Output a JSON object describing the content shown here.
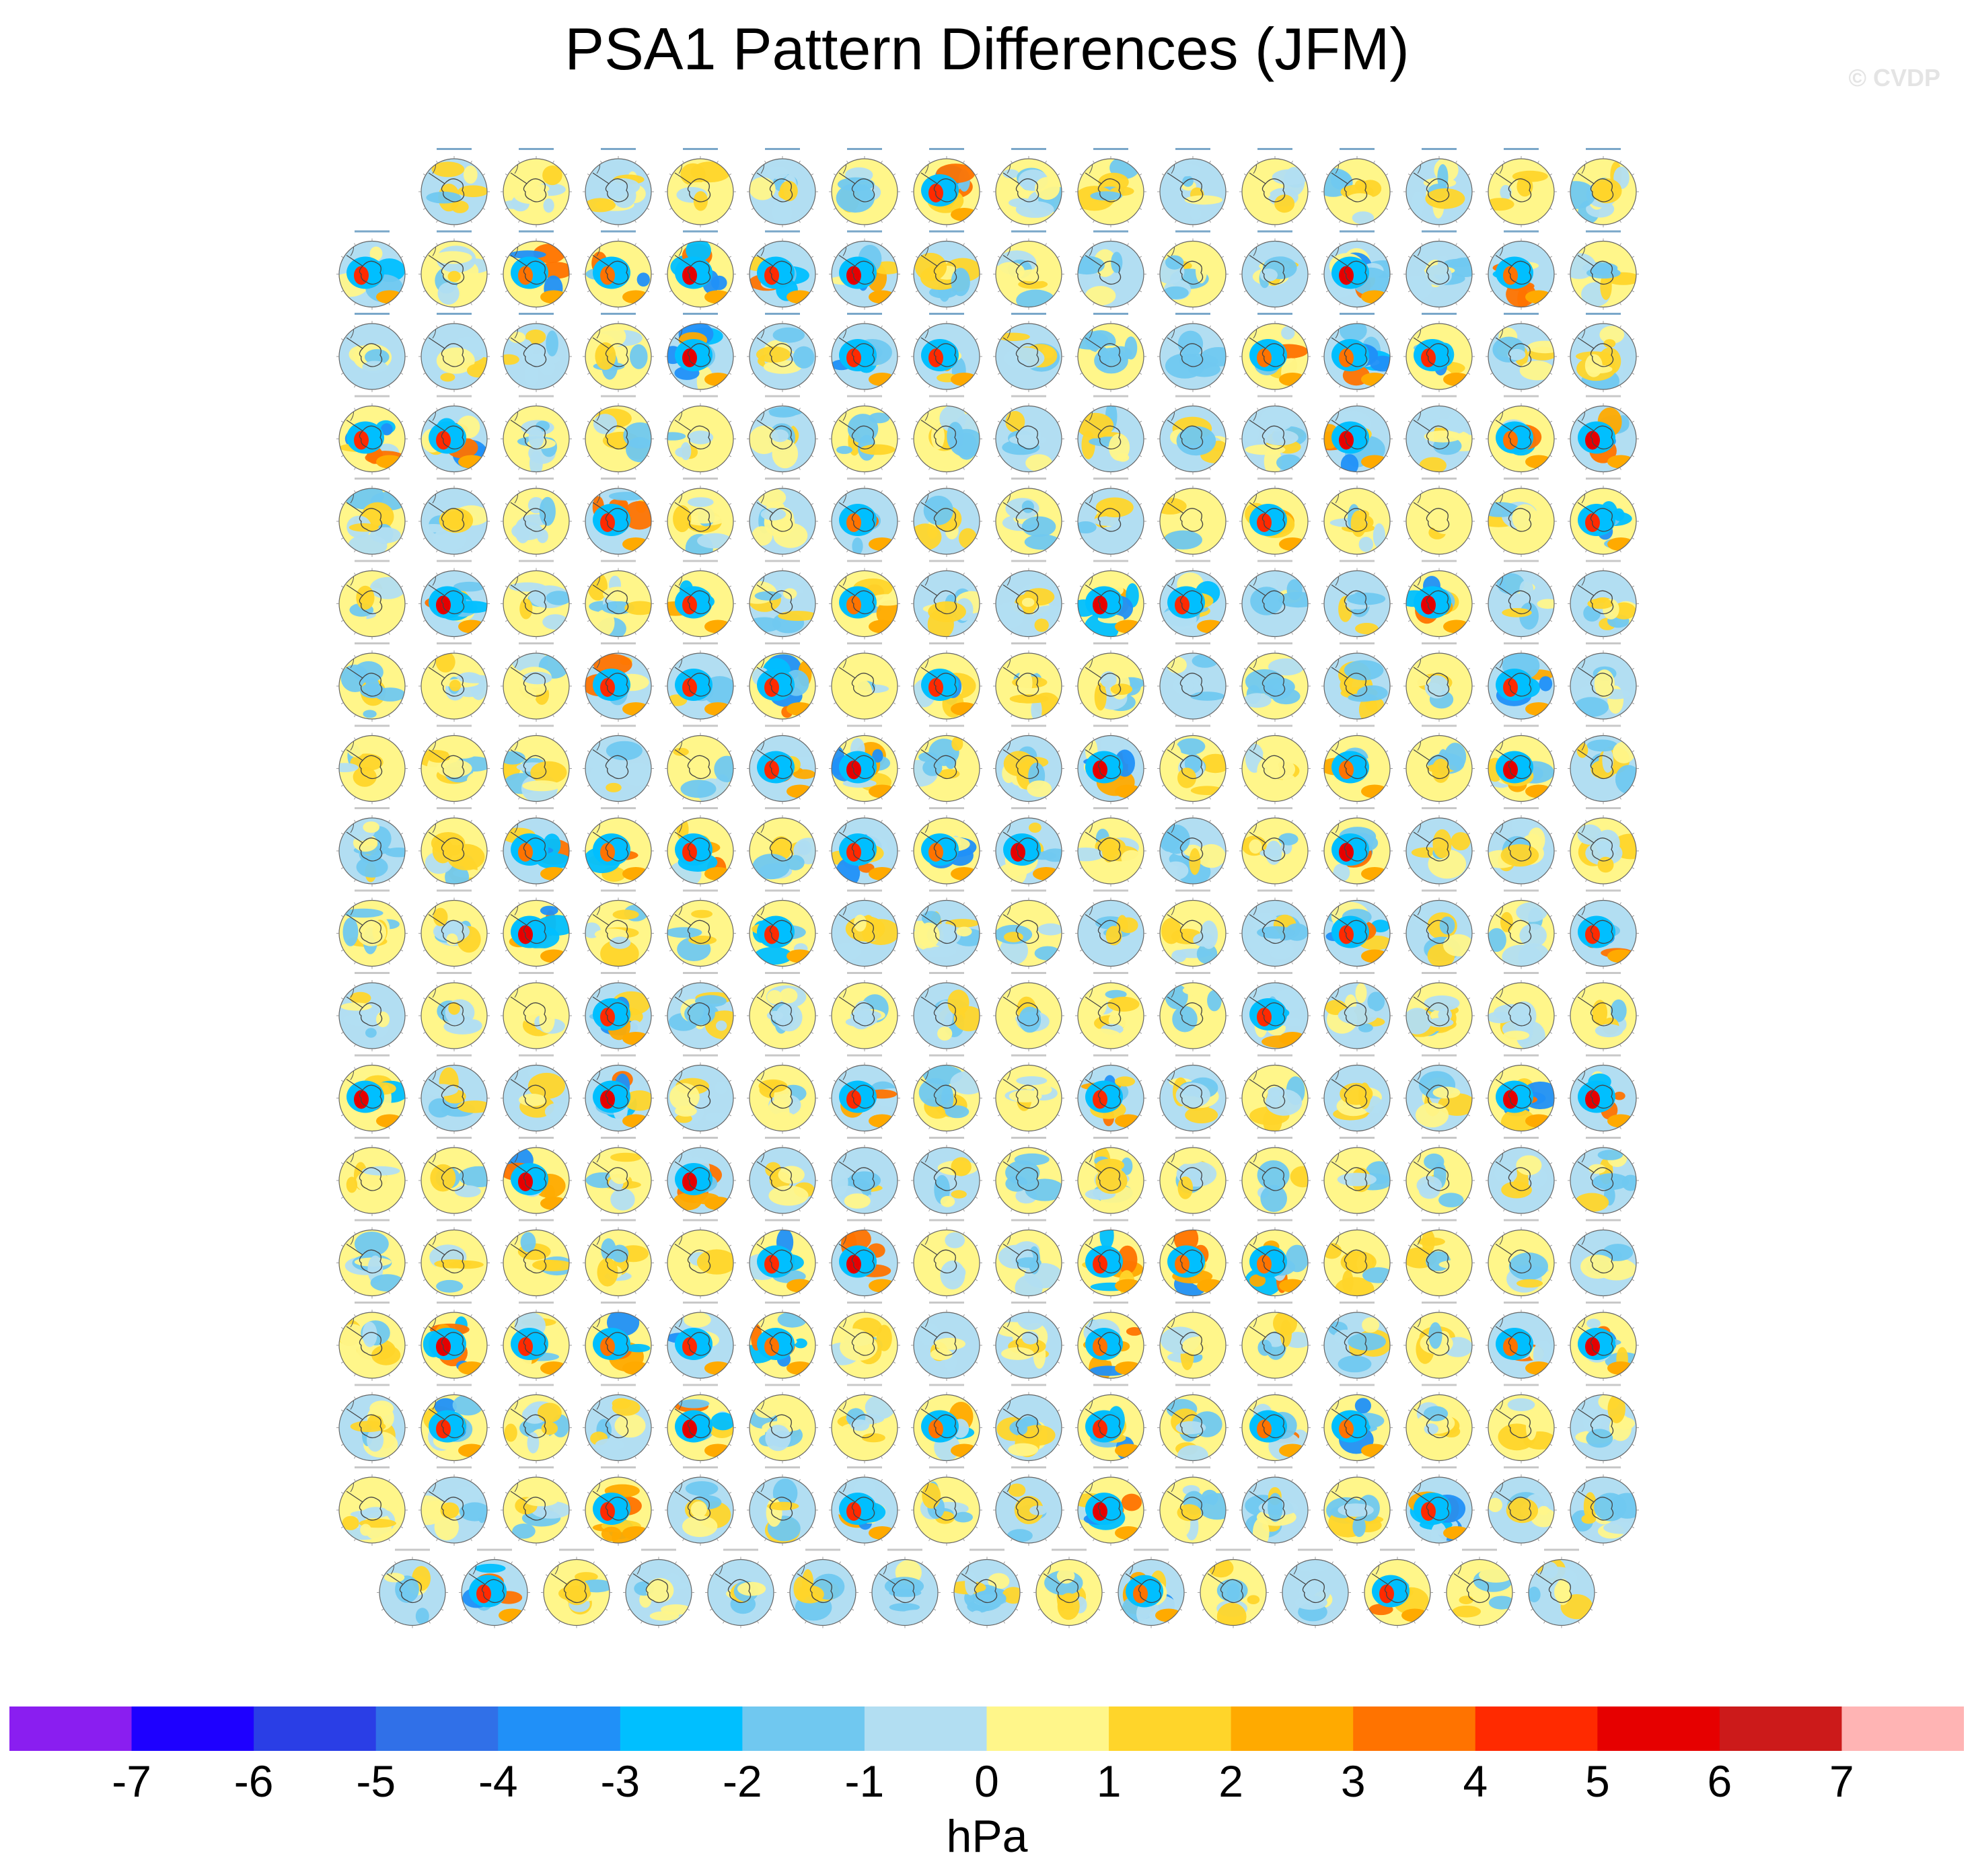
{
  "title": "PSA1 Pattern Differences (JFM)",
  "watermark": "© CVDP",
  "chart_data": {
    "type": "heatmap",
    "description_kind": "panel grid of polar-stereographic Southern Hemisphere maps",
    "title": "PSA1 Pattern Differences (JFM)",
    "variable_units": "hPa",
    "grid": {
      "rows": 18,
      "columns": 16,
      "row_panel_counts": [
        15,
        16,
        16,
        16,
        16,
        16,
        16,
        16,
        16,
        16,
        16,
        16,
        16,
        16,
        16,
        16,
        16,
        15
      ],
      "total_panels": 286
    },
    "colorbar": {
      "label": "hPa",
      "tick_labels": [
        "-7",
        "-6",
        "-5",
        "-4",
        "-3",
        "-2",
        "-1",
        "0",
        "1",
        "2",
        "3",
        "4",
        "5",
        "6",
        "7"
      ],
      "ticks": [
        -7,
        -6,
        -5,
        -4,
        -3,
        -2,
        -1,
        0,
        1,
        2,
        3,
        4,
        5,
        6,
        7
      ],
      "colors": [
        "#8a1ef0",
        "#1e00ff",
        "#2a3ee6",
        "#3070e8",
        "#2090f8",
        "#00bfff",
        "#70c8f0",
        "#b2def2",
        "#fff68a",
        "#ffd52a",
        "#ffaa00",
        "#ff7300",
        "#ff2a00",
        "#e60000",
        "#cc1a1a",
        "#ffb4b4"
      ]
    }
  }
}
